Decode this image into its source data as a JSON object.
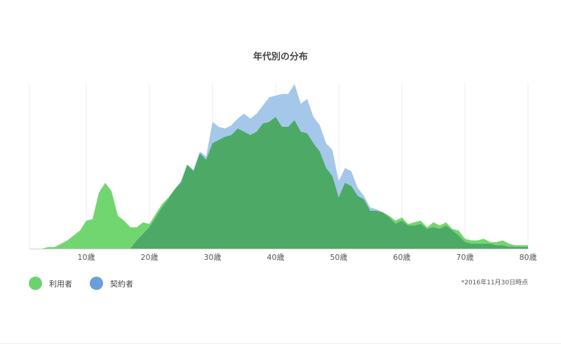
{
  "note": "*2016年11月30日時点",
  "colors": {
    "users_area": "#72d670",
    "contracts_area": "#a5c7ea",
    "overlap_area": "#4caa66",
    "grid": "#ececec",
    "baseline": "#cfcfcf"
  },
  "chart_data": {
    "type": "area",
    "title": "年代別の分布",
    "xlabel": "",
    "ylabel": "",
    "xlim": [
      1,
      80
    ],
    "ylim": [
      0,
      100
    ],
    "x_ticks": [
      10,
      20,
      30,
      40,
      50,
      60,
      70,
      80
    ],
    "x_tick_labels": [
      "10歳",
      "20歳",
      "30歳",
      "40歳",
      "50歳",
      "60歳",
      "70歳",
      "80歳"
    ],
    "grid": "vertical",
    "legend_position": "bottom-left",
    "x": [
      1,
      2,
      3,
      4,
      5,
      6,
      7,
      8,
      9,
      10,
      11,
      12,
      13,
      14,
      15,
      16,
      17,
      18,
      19,
      20,
      21,
      22,
      23,
      24,
      25,
      26,
      27,
      28,
      29,
      30,
      31,
      32,
      33,
      34,
      35,
      36,
      37,
      38,
      39,
      40,
      41,
      42,
      43,
      44,
      45,
      46,
      47,
      48,
      49,
      50,
      51,
      52,
      53,
      54,
      55,
      56,
      57,
      58,
      59,
      60,
      61,
      62,
      63,
      64,
      65,
      66,
      67,
      68,
      69,
      70,
      71,
      72,
      73,
      74,
      75,
      76,
      77,
      78,
      79,
      80
    ],
    "series": [
      {
        "name": "利用者",
        "color": "#6ad36b",
        "values": [
          0,
          0,
          0,
          1,
          1,
          3,
          5,
          8,
          11,
          17,
          18,
          34,
          40,
          35,
          20,
          17,
          13,
          13,
          16,
          15,
          21,
          27,
          31,
          36,
          40,
          51,
          47,
          58,
          54,
          64,
          66,
          68,
          69,
          73,
          71,
          69,
          71,
          76,
          77,
          80,
          74,
          74,
          78,
          71,
          70,
          64,
          59,
          49,
          44,
          31,
          40,
          38,
          32,
          30,
          23,
          23,
          22,
          20,
          17,
          19,
          15,
          16,
          17,
          13,
          16,
          14,
          16,
          12,
          11,
          6,
          5,
          5,
          6,
          4,
          4,
          5,
          3,
          2,
          2,
          2
        ]
      },
      {
        "name": "契約者",
        "color": "#6a9fdc",
        "values": [
          0,
          0,
          0,
          0,
          0,
          0,
          0,
          0,
          0,
          0,
          0,
          0,
          0,
          0,
          0,
          0,
          0,
          5,
          9,
          13,
          19,
          25,
          30,
          36,
          41,
          51,
          48,
          59,
          56,
          77,
          74,
          73,
          75,
          79,
          82,
          79,
          82,
          87,
          92,
          93,
          94,
          94,
          100,
          88,
          91,
          80,
          75,
          64,
          60,
          41,
          49,
          47,
          37,
          32,
          25,
          24,
          22,
          19,
          15,
          17,
          14,
          14,
          15,
          12,
          13,
          12,
          14,
          11,
          8,
          4,
          3,
          3,
          3,
          3,
          2,
          2,
          1,
          1,
          1,
          1
        ]
      }
    ]
  }
}
